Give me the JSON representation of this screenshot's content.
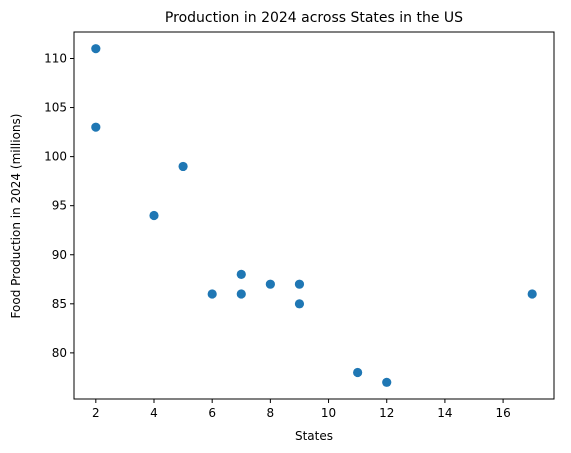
{
  "chart_data": {
    "type": "scatter",
    "title": "Production in 2024 across States in the US",
    "xlabel": "States",
    "ylabel": "Food Production in 2024 (millions)",
    "xlim": [
      1.25,
      17.75
    ],
    "ylim": [
      75.3,
      112.7
    ],
    "xticks": [
      2,
      4,
      6,
      8,
      10,
      12,
      14,
      16
    ],
    "yticks": [
      80,
      85,
      90,
      95,
      100,
      105,
      110
    ],
    "grid": false,
    "legend": "none",
    "marker_color": "#1f77b4",
    "points": [
      {
        "x": 2,
        "y": 111
      },
      {
        "x": 2,
        "y": 103
      },
      {
        "x": 5,
        "y": 99
      },
      {
        "x": 4,
        "y": 94
      },
      {
        "x": 7,
        "y": 88
      },
      {
        "x": 6,
        "y": 86
      },
      {
        "x": 7,
        "y": 86
      },
      {
        "x": 8,
        "y": 87
      },
      {
        "x": 9,
        "y": 87
      },
      {
        "x": 9,
        "y": 85
      },
      {
        "x": 11,
        "y": 78
      },
      {
        "x": 12,
        "y": 77
      },
      {
        "x": 17,
        "y": 86
      }
    ]
  }
}
